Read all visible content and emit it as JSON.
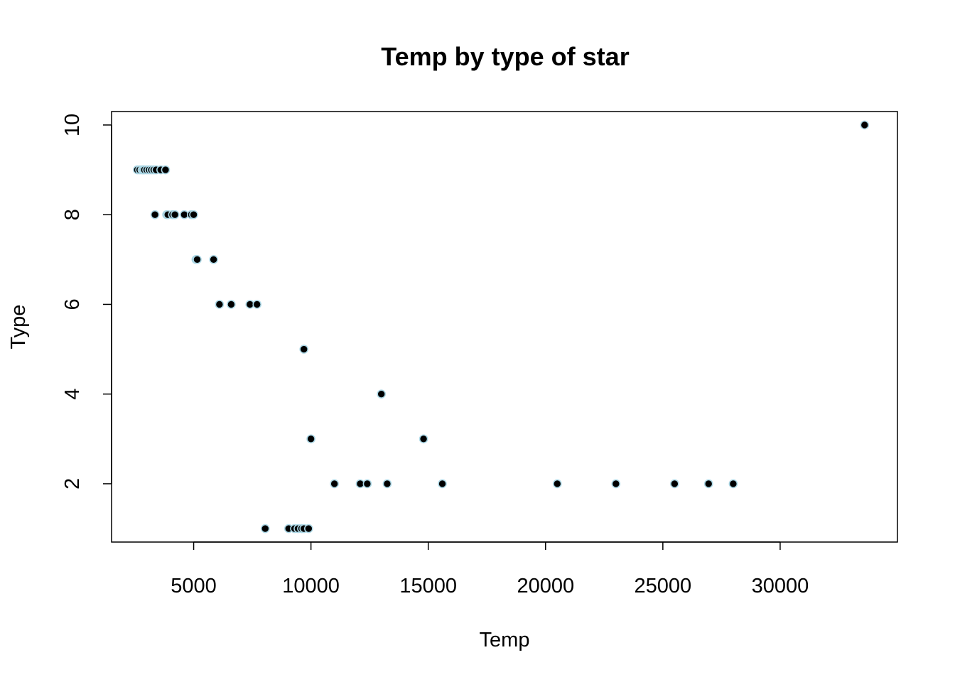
{
  "chart_data": {
    "type": "scatter",
    "title": "Temp by type of star",
    "xlabel": "Temp",
    "ylabel": "Type",
    "xlim": [
      1500,
      35000
    ],
    "ylim": [
      0.7,
      10.3
    ],
    "xticks": [
      5000,
      10000,
      15000,
      20000,
      25000,
      30000
    ],
    "yticks": [
      2,
      4,
      6,
      8,
      10
    ],
    "grid": false,
    "legend": "none",
    "point_fill": "#000000",
    "point_stroke": "#add8e6",
    "points": [
      {
        "x": 2600,
        "y": 9
      },
      {
        "x": 2700,
        "y": 9
      },
      {
        "x": 2800,
        "y": 9
      },
      {
        "x": 2850,
        "y": 9
      },
      {
        "x": 2900,
        "y": 9
      },
      {
        "x": 3000,
        "y": 9
      },
      {
        "x": 3100,
        "y": 9
      },
      {
        "x": 3200,
        "y": 9
      },
      {
        "x": 3300,
        "y": 9
      },
      {
        "x": 3400,
        "y": 9
      },
      {
        "x": 3600,
        "y": 9
      },
      {
        "x": 3800,
        "y": 9
      },
      {
        "x": 3350,
        "y": 8
      },
      {
        "x": 3850,
        "y": 8
      },
      {
        "x": 3900,
        "y": 8
      },
      {
        "x": 4100,
        "y": 8
      },
      {
        "x": 4200,
        "y": 8
      },
      {
        "x": 4600,
        "y": 8
      },
      {
        "x": 4900,
        "y": 8
      },
      {
        "x": 5000,
        "y": 8
      },
      {
        "x": 5100,
        "y": 7
      },
      {
        "x": 5150,
        "y": 7
      },
      {
        "x": 5850,
        "y": 7
      },
      {
        "x": 6100,
        "y": 6
      },
      {
        "x": 6600,
        "y": 6
      },
      {
        "x": 7400,
        "y": 6
      },
      {
        "x": 7700,
        "y": 6
      },
      {
        "x": 9700,
        "y": 5
      },
      {
        "x": 13000,
        "y": 4
      },
      {
        "x": 10000,
        "y": 3
      },
      {
        "x": 14800,
        "y": 3
      },
      {
        "x": 11000,
        "y": 2
      },
      {
        "x": 12100,
        "y": 2
      },
      {
        "x": 12400,
        "y": 2
      },
      {
        "x": 13250,
        "y": 2
      },
      {
        "x": 15600,
        "y": 2
      },
      {
        "x": 20500,
        "y": 2
      },
      {
        "x": 23000,
        "y": 2
      },
      {
        "x": 25500,
        "y": 2
      },
      {
        "x": 26950,
        "y": 2
      },
      {
        "x": 28000,
        "y": 2
      },
      {
        "x": 8050,
        "y": 1
      },
      {
        "x": 9050,
        "y": 1
      },
      {
        "x": 9300,
        "y": 1
      },
      {
        "x": 9450,
        "y": 1
      },
      {
        "x": 9600,
        "y": 1
      },
      {
        "x": 9700,
        "y": 1
      },
      {
        "x": 9900,
        "y": 1
      },
      {
        "x": 33600,
        "y": 10
      }
    ]
  }
}
